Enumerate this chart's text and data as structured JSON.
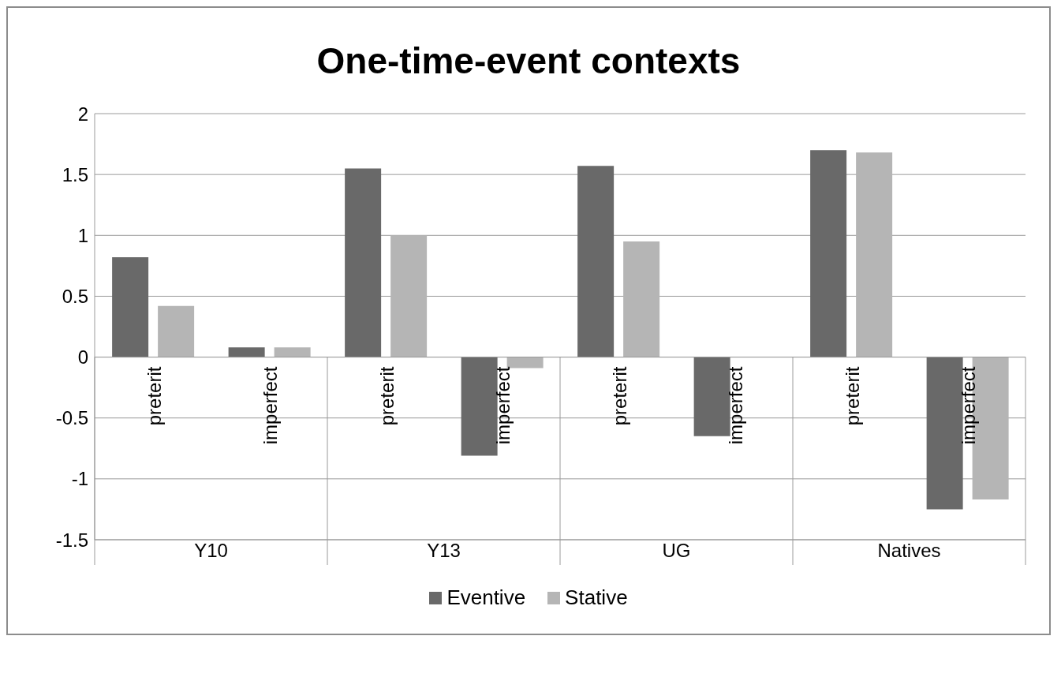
{
  "chart_data": {
    "type": "bar",
    "title": "One-time-event contexts",
    "categories": [
      "preterit",
      "imperfect",
      "preterit",
      "imperfect",
      "preterit",
      "imperfect",
      "preterit",
      "imperfect"
    ],
    "annotations": [
      "Y10",
      "Y13",
      "UG",
      "Natives"
    ],
    "series": [
      {
        "name": "Eventive",
        "color": "#696969",
        "values": [
          0.82,
          0.08,
          1.55,
          -0.81,
          1.57,
          -0.65,
          1.7,
          -1.25
        ]
      },
      {
        "name": "Stative",
        "color": "#b5b5b5",
        "values": [
          0.42,
          0.08,
          1.0,
          -0.09,
          0.95,
          0,
          1.68,
          -1.17
        ]
      }
    ],
    "ylim": [
      -1.5,
      2
    ],
    "yticks": [
      -1.5,
      -1,
      -0.5,
      0,
      0.5,
      1,
      1.5,
      2
    ],
    "grid": "y",
    "legend": "bottom"
  }
}
